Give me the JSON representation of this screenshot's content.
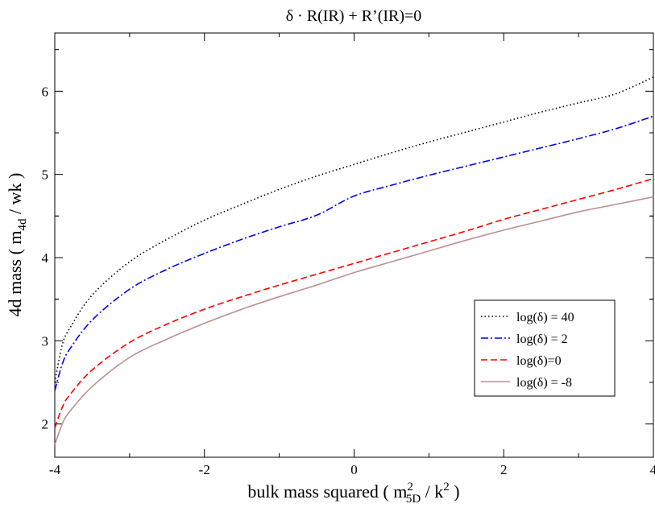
{
  "chart_data": {
    "type": "line",
    "title": "δ · R(IR) + R’(IR)=0",
    "xlabel": {
      "main": "bulk mass squared ( m",
      "sup1": "2",
      "sub1": "5D",
      "mid": " / k",
      "sup2": "2",
      "end": " )"
    },
    "ylabel": {
      "main": "4d mass  ( m",
      "sub": "4d",
      "end": " / wk )"
    },
    "xlim": [
      -4,
      4
    ],
    "ylim": [
      1.6,
      6.7
    ],
    "x_ticks": [
      -4,
      -2,
      0,
      2,
      4
    ],
    "x_tick_labels": [
      "-4",
      "-2",
      "0",
      "2",
      "4"
    ],
    "y_ticks": [
      2,
      3,
      4,
      5,
      6
    ],
    "y_tick_labels": [
      "2",
      "3",
      "4",
      "5",
      "6"
    ],
    "grid": false,
    "legend_position": "bottom-right",
    "series": [
      {
        "name": "log(δ) = 40",
        "color": "#000000",
        "style": "dotted",
        "x": [
          -4,
          -3.9,
          -3.8,
          -3.5,
          -3,
          -2.5,
          -2,
          -1.5,
          -1,
          -0.5,
          0,
          0.5,
          1,
          1.5,
          2,
          2.5,
          3,
          3.5,
          4
        ],
        "y": [
          2.5,
          2.95,
          3.15,
          3.55,
          3.95,
          4.22,
          4.45,
          4.64,
          4.82,
          4.98,
          5.12,
          5.26,
          5.39,
          5.51,
          5.63,
          5.75,
          5.86,
          5.97,
          6.17
        ]
      },
      {
        "name": "log(δ) = 2",
        "color": "#0000ff",
        "style": "dashdot",
        "x": [
          -4,
          -3.9,
          -3.8,
          -3.5,
          -3,
          -2.5,
          -2,
          -1.5,
          -1,
          -0.5,
          0,
          0.5,
          1,
          1.5,
          2,
          2.5,
          3,
          3.5,
          4
        ],
        "y": [
          2.4,
          2.72,
          2.9,
          3.25,
          3.62,
          3.86,
          4.05,
          4.22,
          4.37,
          4.51,
          4.74,
          4.87,
          4.99,
          5.1,
          5.21,
          5.32,
          5.43,
          5.55,
          5.7
        ]
      },
      {
        "name": "log(δ)=0",
        "color": "#ff0000",
        "style": "dashed",
        "x": [
          -4,
          -3.9,
          -3.8,
          -3.5,
          -3,
          -2.5,
          -2,
          -1.5,
          -1,
          -0.5,
          0,
          0.5,
          1,
          1.5,
          2,
          2.5,
          3,
          3.5,
          4
        ],
        "y": [
          1.95,
          2.2,
          2.35,
          2.65,
          2.98,
          3.2,
          3.38,
          3.53,
          3.67,
          3.8,
          3.93,
          4.06,
          4.19,
          4.32,
          4.46,
          4.58,
          4.7,
          4.82,
          4.95
        ]
      },
      {
        "name": "log(δ) = -8",
        "color": "#bc8f8f",
        "style": "solid",
        "x": [
          -4,
          -3.9,
          -3.8,
          -3.5,
          -3,
          -2.5,
          -2,
          -1.5,
          -1,
          -0.5,
          0,
          0.5,
          1,
          1.5,
          2,
          2.5,
          3,
          3.5,
          4
        ],
        "y": [
          1.75,
          2.0,
          2.15,
          2.45,
          2.8,
          3.02,
          3.21,
          3.38,
          3.53,
          3.67,
          3.82,
          3.95,
          4.08,
          4.21,
          4.33,
          4.44,
          4.55,
          4.64,
          4.73
        ]
      }
    ]
  }
}
